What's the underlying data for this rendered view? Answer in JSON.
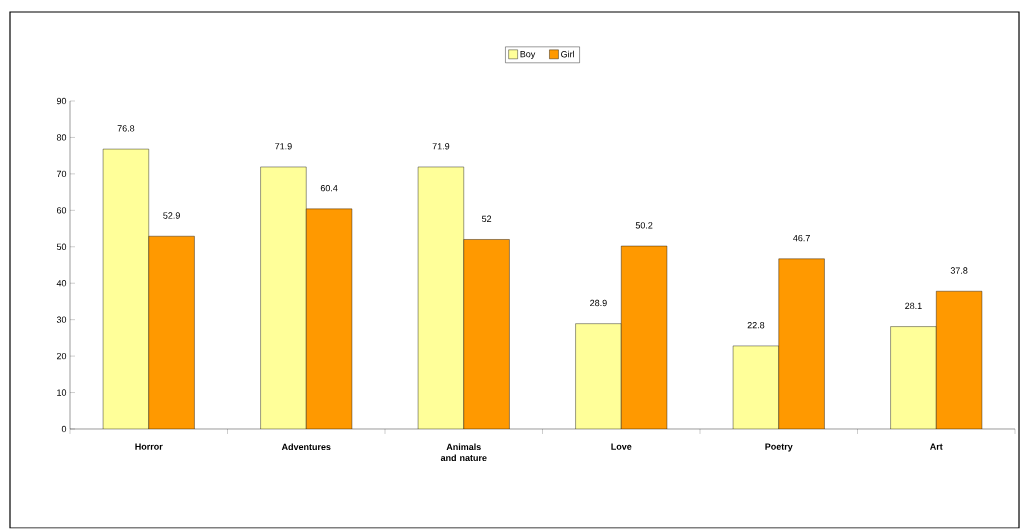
{
  "chart_data": {
    "type": "bar",
    "categories": [
      "Horror",
      "Adventures",
      "Animals and nature",
      "Love",
      "Poetry",
      "Art"
    ],
    "series": [
      {
        "name": "Boy",
        "color": "#ffff99",
        "values": [
          76.8,
          71.9,
          71.9,
          28.9,
          22.8,
          28.1
        ]
      },
      {
        "name": "Girl",
        "color": "#ff9900",
        "values": [
          52.9,
          60.4,
          52,
          50.2,
          46.7,
          37.8
        ]
      }
    ],
    "ylim": [
      0,
      90
    ],
    "yticks": [
      0,
      10,
      20,
      30,
      40,
      50,
      60,
      70,
      80,
      90
    ],
    "data_labels": true,
    "legend": "top",
    "grid": false
  }
}
